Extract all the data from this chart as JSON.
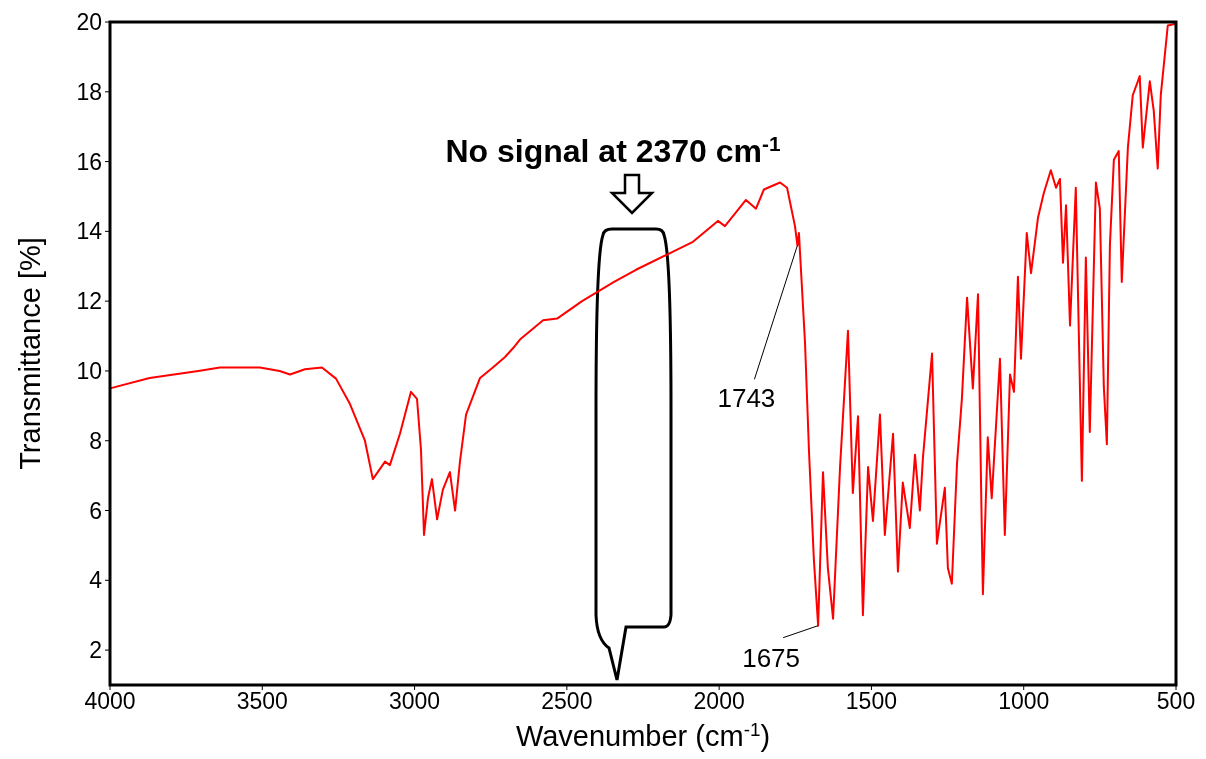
{
  "chart_data": {
    "type": "line",
    "xlabel": "Wavenumber (cm$^{-1}$)",
    "ylabel": "Transmittance [%]",
    "xlim": [
      4000,
      500
    ],
    "xticks": [
      4000,
      3500,
      3000,
      2500,
      2000,
      1500,
      1000,
      500
    ],
    "ylim": [
      1,
      20
    ],
    "yticks": [
      2,
      4,
      6,
      8,
      10,
      12,
      14,
      16,
      18,
      20
    ],
    "marker": "none",
    "line_style": "solid",
    "annotations": [
      "No signal at 2370 cm$^{-1}$",
      {
        "text": "1743",
        "x": 1743,
        "y": 13.6
      },
      {
        "text": "1675",
        "x": 1675,
        "y": 2.7
      }
    ],
    "series": [
      {
        "color": "#ff0000",
        "x": [
          4000,
          3870,
          3710,
          3639,
          3508,
          3443,
          3409,
          3360,
          3304,
          3258,
          3212,
          3163,
          3137,
          3097,
          3081,
          3048,
          3012,
          2992,
          2979,
          2969,
          2956,
          2943,
          2926,
          2907,
          2884,
          2867,
          2851,
          2831,
          2785,
          2743,
          2703,
          2677,
          2654,
          2578,
          2532,
          2450,
          2345,
          2273,
          2168,
          2086,
          2004,
          1981,
          1912,
          1879,
          1853,
          1800,
          1777,
          1751,
          1743,
          1738,
          1718,
          1705,
          1689,
          1675,
          1659,
          1643,
          1626,
          1603,
          1577,
          1561,
          1544,
          1528,
          1511,
          1495,
          1472,
          1456,
          1429,
          1413,
          1397,
          1374,
          1357,
          1341,
          1331,
          1301,
          1285,
          1259,
          1249,
          1236,
          1219,
          1203,
          1186,
          1167,
          1150,
          1137,
          1134,
          1118,
          1105,
          1078,
          1062,
          1045,
          1032,
          1019,
          1009,
          990,
          976,
          953,
          934,
          911,
          894,
          881,
          871,
          861,
          848,
          829,
          809,
          796,
          783,
          763,
          750,
          737,
          727,
          717,
          704,
          688,
          678,
          658,
          642,
          619,
          609,
          586,
          573,
          560,
          550,
          527,
          500
        ],
        "values": [
          9.5,
          9.8,
          10.0,
          10.1,
          10.1,
          10.0,
          9.9,
          10.05,
          10.1,
          9.78,
          9.05,
          8.0,
          6.9,
          7.4,
          7.3,
          8.2,
          9.4,
          9.2,
          7.75,
          5.3,
          6.35,
          6.9,
          5.75,
          6.6,
          7.1,
          6.0,
          7.4,
          8.75,
          9.8,
          10.1,
          10.4,
          10.65,
          10.9,
          11.45,
          11.5,
          12.0,
          12.55,
          12.9,
          13.35,
          13.7,
          14.3,
          14.15,
          14.9,
          14.65,
          15.2,
          15.4,
          15.25,
          14.15,
          13.6,
          13.95,
          10.8,
          7.7,
          4.6,
          2.7,
          7.1,
          4.35,
          2.9,
          7.25,
          11.15,
          6.5,
          8.7,
          3.0,
          7.25,
          5.7,
          8.75,
          5.3,
          8.2,
          4.25,
          6.8,
          5.5,
          7.6,
          6.0,
          7.5,
          10.5,
          5.05,
          6.65,
          4.35,
          3.9,
          7.35,
          9.2,
          12.1,
          9.5,
          12.2,
          5.1,
          3.6,
          8.1,
          6.35,
          10.35,
          5.3,
          9.9,
          9.4,
          12.7,
          10.35,
          13.95,
          12.8,
          14.4,
          15.1,
          15.75,
          15.25,
          15.5,
          13.1,
          14.75,
          11.3,
          15.25,
          6.85,
          13.25,
          8.25,
          15.4,
          14.65,
          9.55,
          7.9,
          13.6,
          16.05,
          16.3,
          12.55,
          16.4,
          17.9,
          18.45,
          16.4,
          18.3,
          17.45,
          15.8,
          17.9,
          19.9,
          19.95
        ]
      }
    ]
  }
}
